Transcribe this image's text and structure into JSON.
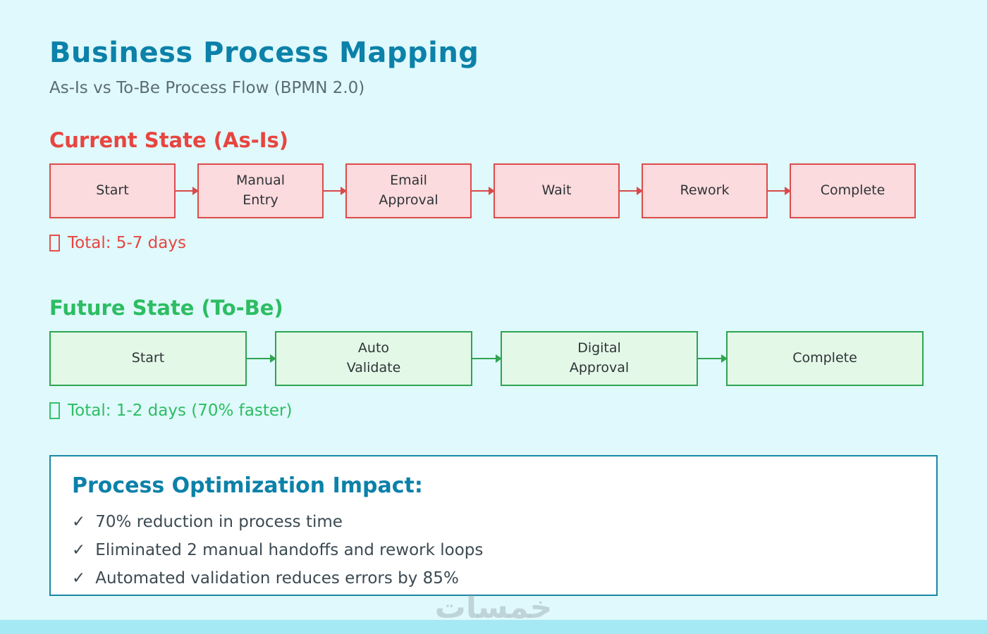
{
  "header": {
    "title": "Business Process Mapping",
    "subtitle": "As-Is vs To-Be Process Flow (BPMN 2.0)"
  },
  "current_state": {
    "heading": "Current State (As-Is)",
    "steps": [
      "Start",
      "Manual\nEntry",
      "Email\nApproval",
      "Wait",
      "Rework",
      "Complete"
    ],
    "total": "Total: 5-7 days"
  },
  "future_state": {
    "heading": "Future State (To-Be)",
    "steps": [
      "Start",
      "Auto\nValidate",
      "Digital\nApproval",
      "Complete"
    ],
    "total": "Total: 1-2 days (70% faster)"
  },
  "impact": {
    "heading": "Process Optimization Impact:",
    "check_glyph": "✓",
    "items": [
      "70% reduction in process time",
      "Eliminated 2 manual handoffs and rework loops",
      "Automated validation reduces errors by 85%"
    ]
  },
  "watermark": "خمسات",
  "colors": {
    "background": "#DFF9FC",
    "title_teal": "#0C81A9",
    "subtitle_gray": "#5C6C74",
    "current_red": "#E84540",
    "current_box_fill": "#FBDBDD",
    "current_box_border": "#DD4B4B",
    "future_green": "#2DBD62",
    "future_box_fill": "#E3F8E7",
    "future_box_border": "#2FA452",
    "impact_border": "#1B87A5",
    "impact_text": "#3C4A52"
  }
}
